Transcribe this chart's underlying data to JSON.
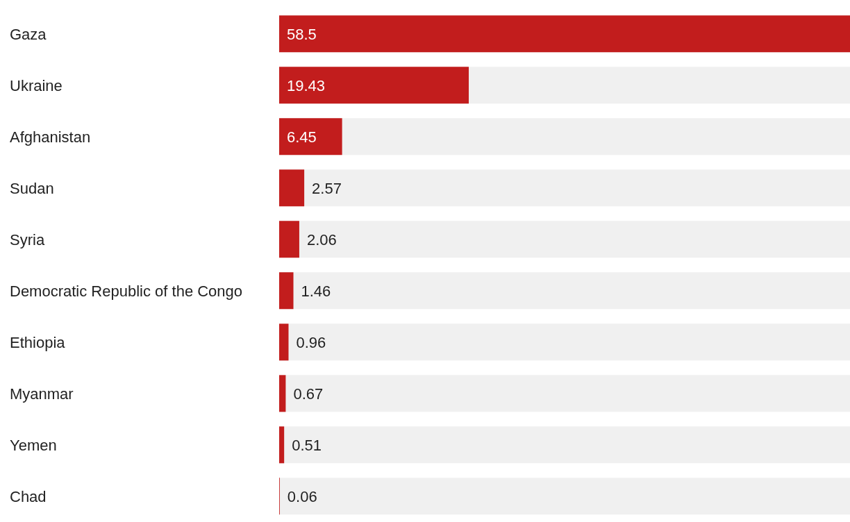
{
  "chart_data": {
    "type": "bar",
    "orientation": "horizontal",
    "categories": [
      "Gaza",
      "Ukraine",
      "Afghanistan",
      "Sudan",
      "Syria",
      "Democratic Republic of the Congo",
      "Ethiopia",
      "Myanmar",
      "Yemen",
      "Chad"
    ],
    "values": [
      58.5,
      19.43,
      6.45,
      2.57,
      2.06,
      1.46,
      0.96,
      0.67,
      0.51,
      0.06
    ],
    "color": "#c21d1d",
    "xlim": [
      0,
      58.5
    ],
    "data_labels": true,
    "tick_labels": "y"
  }
}
